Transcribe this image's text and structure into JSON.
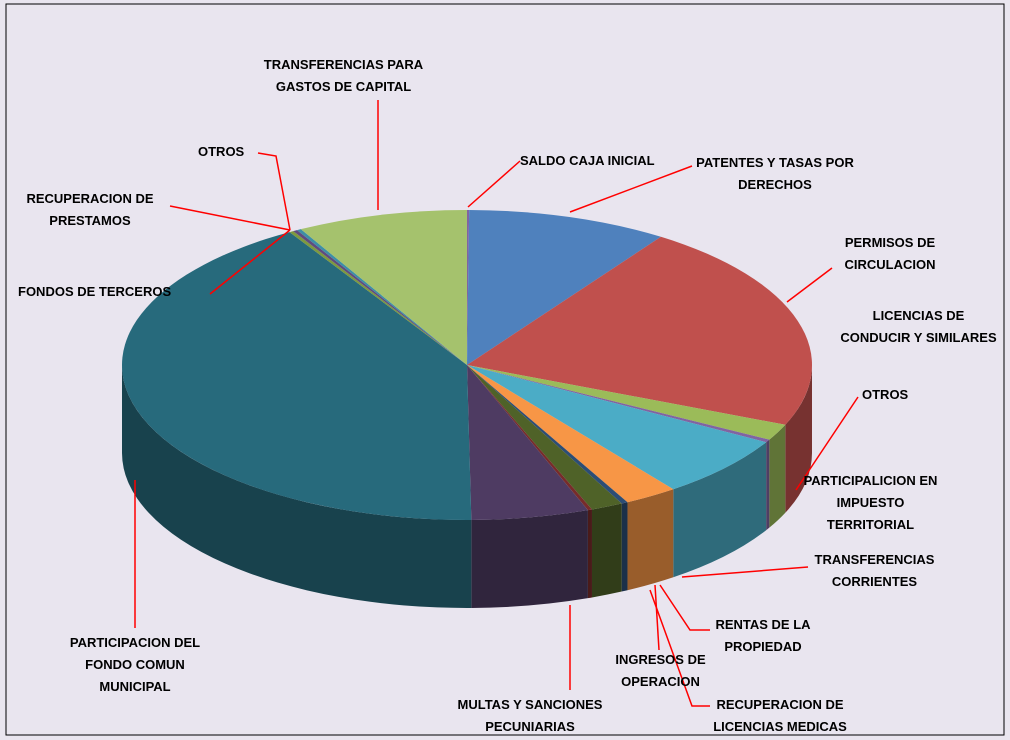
{
  "chart_data": {
    "type": "pie3d",
    "categories": [
      "SALDO CAJA INICIAL",
      "PATENTES Y TASAS POR DERECHOS",
      "PERMISOS DE CIRCULACION",
      "LICENCIAS DE CONDUCIR Y SIMILARES",
      "OTROS",
      "PARTICIPALICION EN IMPUESTO TERRITORIAL",
      "TRANSFERENCIAS CORRIENTES",
      "RENTAS DE LA PROPIEDAD",
      "INGRESOS DE OPERACION",
      "RECUPERACION DE LICENCIAS MEDICAS",
      "MULTAS Y SANCIONES PECUNIARIAS",
      "PARTICIPACION DEL FONDO COMUN MUNICIPAL",
      "FONDOS DE TERCEROS",
      "RECUPERACION DE PRESTAMOS",
      "OTROS",
      "TRANSFERENCIAS PARA GASTOS DE CAPITAL"
    ],
    "values": [
      0.1,
      9.4,
      21.8,
      1.7,
      0.3,
      6.5,
      2.5,
      0.3,
      1.5,
      0.2,
      5.5,
      41.6,
      0.2,
      0.2,
      0.2,
      8.0
    ],
    "colors": [
      "#8064a2",
      "#4f81bd",
      "#c0504d",
      "#9bbb59",
      "#8064a2",
      "#4bacc6",
      "#f79646",
      "#2c4d75",
      "#4f6228",
      "#772c2a",
      "#4e3b62",
      "#276a7c",
      "#7e9a3e",
      "#5f4b7f",
      "#3d8fa6",
      "#a5c26d"
    ]
  }
}
